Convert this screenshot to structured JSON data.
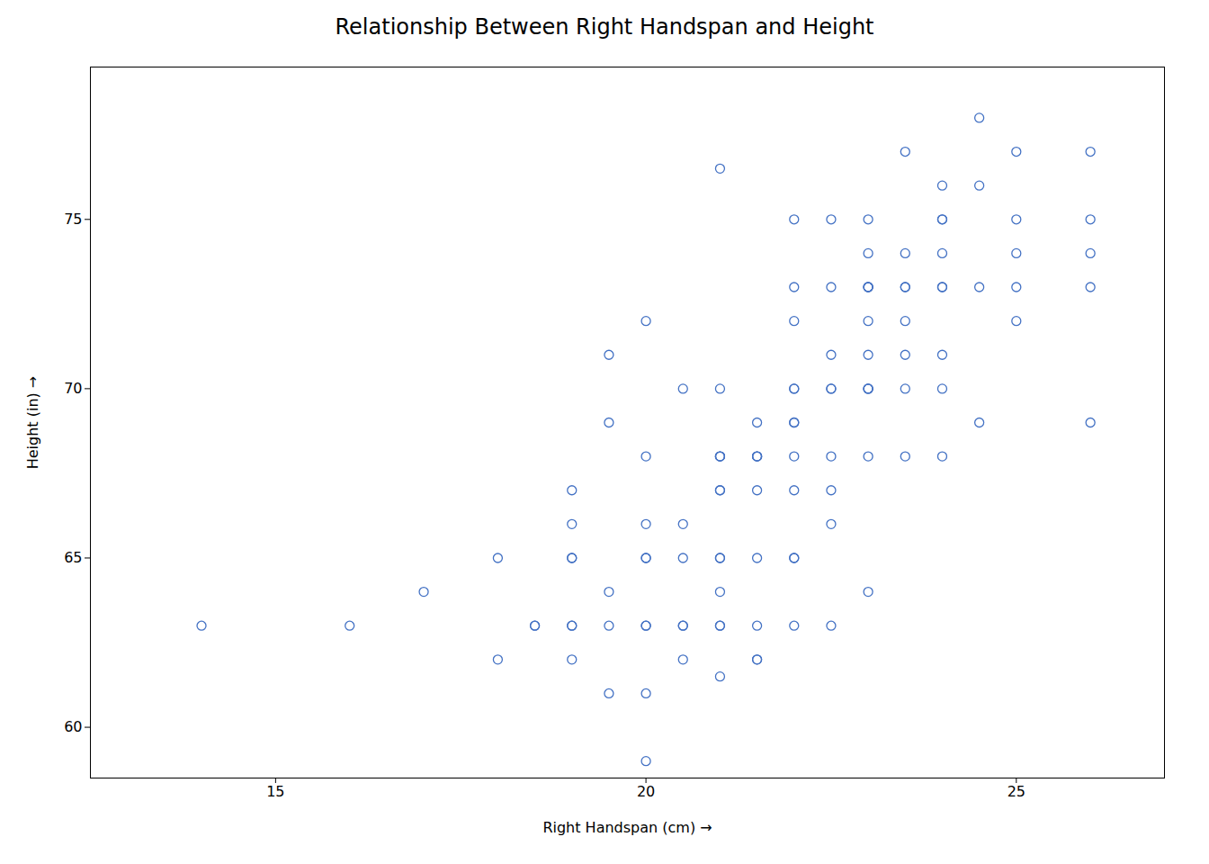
{
  "chart_data": {
    "type": "scatter",
    "title": "Relationship Between Right Handspan and Height",
    "xlabel": "Right Handspan (cm)",
    "ylabel": "Height (in)",
    "color": "#4472C4",
    "marker": "open-circle",
    "grid": false,
    "xlim": [
      12.5,
      27
    ],
    "ylim": [
      58.5,
      79.5
    ],
    "xticks": [
      15,
      20,
      25
    ],
    "yticks": [
      60,
      65,
      70,
      75
    ],
    "x": [
      14,
      16,
      17,
      18,
      18,
      18.5,
      18.5,
      19,
      19,
      19,
      19,
      19,
      19,
      19,
      19.5,
      19.5,
      19.5,
      19.5,
      19.5,
      20,
      20,
      20,
      20,
      20,
      20,
      20,
      20,
      20,
      20.5,
      20.5,
      20.5,
      20.5,
      20.5,
      20.5,
      21,
      21,
      21,
      21,
      21,
      21,
      21,
      21,
      21,
      21,
      21,
      21,
      21,
      21.5,
      21.5,
      21.5,
      21.5,
      21.5,
      21.5,
      21.5,
      21.5,
      21.5,
      22,
      22,
      22,
      22,
      22,
      22,
      22,
      22,
      22,
      22,
      22,
      22,
      22.5,
      22.5,
      22.5,
      22.5,
      22.5,
      22.5,
      22.5,
      22.5,
      22.5,
      23,
      23,
      23,
      23,
      23,
      23,
      23,
      23,
      23,
      23,
      23,
      23,
      23.5,
      23.5,
      23.5,
      23.5,
      23.5,
      23.5,
      23.5,
      23.5,
      24,
      24,
      24,
      24,
      24,
      24,
      24,
      24,
      24,
      24.5,
      24.5,
      24.5,
      24.5,
      25,
      25,
      25,
      25,
      25,
      26,
      26,
      26,
      26,
      26
    ],
    "values": [
      63,
      63,
      64,
      62,
      65,
      63,
      63,
      62,
      63,
      63,
      65,
      65,
      66,
      67,
      61,
      63,
      64,
      69,
      71,
      59,
      61,
      63,
      63,
      65,
      65,
      66,
      68,
      72,
      62,
      63,
      63,
      65,
      66,
      70,
      61.5,
      63,
      63,
      64,
      65,
      65,
      67,
      67,
      68,
      68,
      68,
      70,
      76.5,
      62,
      62,
      63,
      65,
      67,
      68,
      68,
      68,
      69,
      63,
      65,
      65,
      67,
      68,
      69,
      69,
      70,
      70,
      72,
      73,
      75,
      63,
      66,
      67,
      68,
      70,
      70,
      71,
      73,
      75,
      64,
      68,
      70,
      70,
      70,
      71,
      72,
      73,
      73,
      73,
      74,
      75,
      68,
      70,
      71,
      72,
      73,
      73,
      74,
      77,
      68,
      70,
      71,
      73,
      73,
      74,
      75,
      75,
      76,
      69,
      73,
      76,
      78,
      72,
      73,
      74,
      75,
      77,
      69,
      73,
      74,
      75,
      77
    ]
  }
}
